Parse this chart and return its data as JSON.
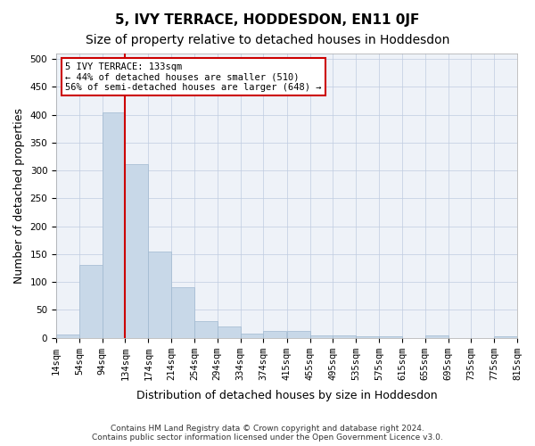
{
  "title": "5, IVY TERRACE, HODDESDON, EN11 0JF",
  "subtitle": "Size of property relative to detached houses in Hoddesdon",
  "xlabel": "Distribution of detached houses by size in Hoddesdon",
  "ylabel": "Number of detached properties",
  "bar_color": "#c8d8e8",
  "bar_edge_color": "#a0b8d0",
  "grid_color": "#c0cce0",
  "bg_color": "#eef2f8",
  "vline_x": 133,
  "vline_color": "#cc0000",
  "annotation_text": "5 IVY TERRACE: 133sqm\n← 44% of detached houses are smaller (510)\n56% of semi-detached houses are larger (648) →",
  "footer": "Contains HM Land Registry data © Crown copyright and database right 2024.\nContains public sector information licensed under the Open Government Licence v3.0.",
  "bin_starts": [
    14,
    54,
    94,
    134,
    174,
    214,
    254,
    294,
    334,
    374,
    415,
    455,
    495,
    535,
    575,
    615,
    655,
    695,
    735,
    775
  ],
  "bin_labels": [
    "14sqm",
    "54sqm",
    "94sqm",
    "134sqm",
    "174sqm",
    "214sqm",
    "254sqm",
    "294sqm",
    "334sqm",
    "374sqm",
    "415sqm",
    "455sqm",
    "495sqm",
    "535sqm",
    "575sqm",
    "615sqm",
    "655sqm",
    "695sqm",
    "735sqm",
    "775sqm",
    "815sqm"
  ],
  "values": [
    6,
    130,
    405,
    312,
    155,
    91,
    30,
    21,
    7,
    13,
    13,
    5,
    5,
    2,
    2,
    0,
    4,
    0,
    0,
    3
  ],
  "ylim": [
    0,
    510
  ],
  "yticks": [
    0,
    50,
    100,
    150,
    200,
    250,
    300,
    350,
    400,
    450,
    500
  ],
  "title_fontsize": 11,
  "subtitle_fontsize": 10,
  "label_fontsize": 9,
  "tick_fontsize": 7.5,
  "footer_fontsize": 6.5
}
